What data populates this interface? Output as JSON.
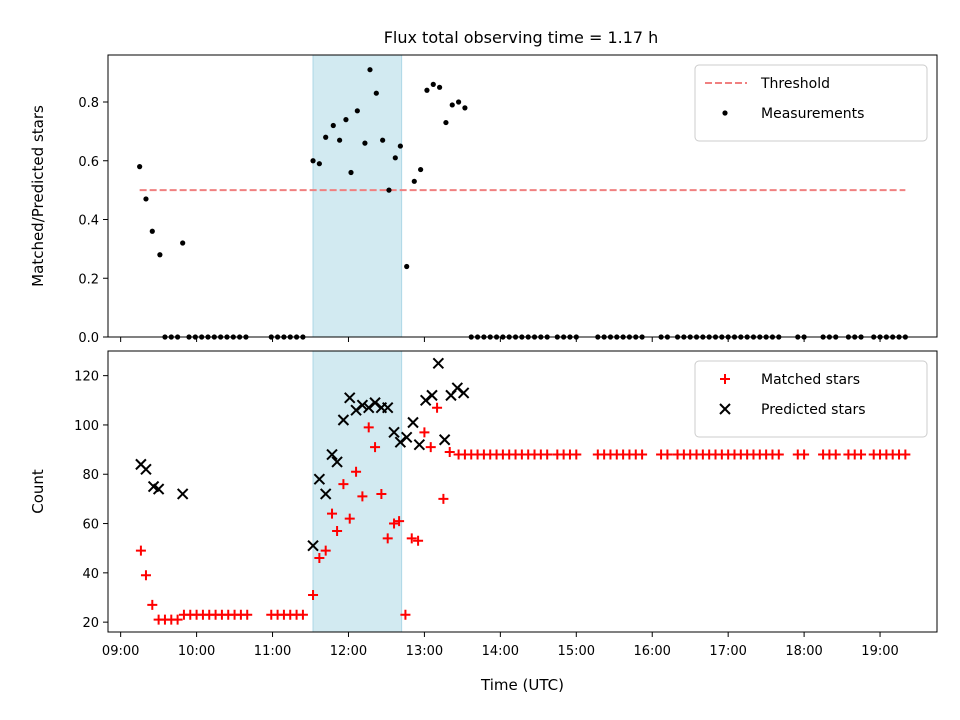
{
  "title": "Flux total observing time = 1.17 h",
  "chart_data": [
    {
      "type": "scatter",
      "ylabel": "Matched/Predicted stars",
      "ylim": [
        0,
        0.96
      ],
      "yticks": [
        0.0,
        0.2,
        0.4,
        0.6,
        0.8
      ],
      "ytick_labels": [
        "0.0",
        "0.2",
        "0.4",
        "0.6",
        "0.8"
      ],
      "xlim": [
        "08:50",
        "19:45"
      ],
      "shaded_span": {
        "start": "11:32",
        "end": "12:42",
        "color": "#add8e6"
      },
      "legend_position": "top-right",
      "threshold": {
        "name": "Threshold",
        "value": 0.5,
        "x_start": "09:15",
        "x_end": "19:20",
        "color": "#f08080"
      },
      "series": [
        {
          "name": "Measurements",
          "color": "#000000",
          "points": [
            [
              "09:15",
              0.58
            ],
            [
              "09:20",
              0.47
            ],
            [
              "09:25",
              0.36
            ],
            [
              "09:31",
              0.28
            ],
            [
              "09:49",
              0.32
            ],
            [
              "09:35",
              0.0
            ],
            [
              "09:40",
              0.0
            ],
            [
              "09:45",
              0.0
            ],
            [
              "09:54",
              0.0
            ],
            [
              "09:59",
              0.0
            ],
            [
              "10:04",
              0.0
            ],
            [
              "10:09",
              0.0
            ],
            [
              "10:14",
              0.0
            ],
            [
              "10:19",
              0.0
            ],
            [
              "10:24",
              0.0
            ],
            [
              "10:29",
              0.0
            ],
            [
              "10:34",
              0.0
            ],
            [
              "10:39",
              0.0
            ],
            [
              "10:59",
              0.0
            ],
            [
              "11:04",
              0.0
            ],
            [
              "11:09",
              0.0
            ],
            [
              "11:14",
              0.0
            ],
            [
              "11:19",
              0.0
            ],
            [
              "11:24",
              0.0
            ],
            [
              "11:32",
              0.6
            ],
            [
              "11:37",
              0.59
            ],
            [
              "11:42",
              0.68
            ],
            [
              "11:48",
              0.72
            ],
            [
              "11:53",
              0.67
            ],
            [
              "11:58",
              0.74
            ],
            [
              "12:02",
              0.56
            ],
            [
              "12:07",
              0.77
            ],
            [
              "12:13",
              0.66
            ],
            [
              "12:17",
              0.91
            ],
            [
              "12:22",
              0.83
            ],
            [
              "12:27",
              0.67
            ],
            [
              "12:32",
              0.5
            ],
            [
              "12:37",
              0.61
            ],
            [
              "12:41",
              0.65
            ],
            [
              "12:46",
              0.24
            ],
            [
              "12:52",
              0.53
            ],
            [
              "12:57",
              0.57
            ],
            [
              "13:02",
              0.84
            ],
            [
              "13:07",
              0.86
            ],
            [
              "13:12",
              0.85
            ],
            [
              "13:17",
              0.73
            ],
            [
              "13:22",
              0.79
            ],
            [
              "13:27",
              0.8
            ],
            [
              "13:32",
              0.78
            ],
            [
              "13:37",
              0.0
            ],
            [
              "13:42",
              0.0
            ],
            [
              "13:47",
              0.0
            ],
            [
              "13:52",
              0.0
            ],
            [
              "13:57",
              0.0
            ],
            [
              "14:02",
              0.0
            ],
            [
              "14:07",
              0.0
            ],
            [
              "14:12",
              0.0
            ],
            [
              "14:17",
              0.0
            ],
            [
              "14:22",
              0.0
            ],
            [
              "14:27",
              0.0
            ],
            [
              "14:32",
              0.0
            ],
            [
              "14:37",
              0.0
            ],
            [
              "14:45",
              0.0
            ],
            [
              "14:50",
              0.0
            ],
            [
              "14:55",
              0.0
            ],
            [
              "15:00",
              0.0
            ],
            [
              "15:17",
              0.0
            ],
            [
              "15:22",
              0.0
            ],
            [
              "15:27",
              0.0
            ],
            [
              "15:32",
              0.0
            ],
            [
              "15:37",
              0.0
            ],
            [
              "15:42",
              0.0
            ],
            [
              "15:47",
              0.0
            ],
            [
              "15:52",
              0.0
            ],
            [
              "16:07",
              0.0
            ],
            [
              "16:12",
              0.0
            ],
            [
              "16:20",
              0.0
            ],
            [
              "16:25",
              0.0
            ],
            [
              "16:30",
              0.0
            ],
            [
              "16:35",
              0.0
            ],
            [
              "16:40",
              0.0
            ],
            [
              "16:45",
              0.0
            ],
            [
              "16:50",
              0.0
            ],
            [
              "16:55",
              0.0
            ],
            [
              "17:00",
              0.0
            ],
            [
              "17:05",
              0.0
            ],
            [
              "17:10",
              0.0
            ],
            [
              "17:15",
              0.0
            ],
            [
              "17:20",
              0.0
            ],
            [
              "17:25",
              0.0
            ],
            [
              "17:30",
              0.0
            ],
            [
              "17:35",
              0.0
            ],
            [
              "17:40",
              0.0
            ],
            [
              "17:55",
              0.0
            ],
            [
              "18:00",
              0.0
            ],
            [
              "18:15",
              0.0
            ],
            [
              "18:20",
              0.0
            ],
            [
              "18:25",
              0.0
            ],
            [
              "18:35",
              0.0
            ],
            [
              "18:40",
              0.0
            ],
            [
              "18:45",
              0.0
            ],
            [
              "18:55",
              0.0
            ],
            [
              "19:00",
              0.0
            ],
            [
              "19:05",
              0.0
            ],
            [
              "19:10",
              0.0
            ],
            [
              "19:15",
              0.0
            ],
            [
              "19:20",
              0.0
            ]
          ]
        }
      ]
    },
    {
      "type": "scatter",
      "ylabel": "Count",
      "xlabel": "Time (UTC)",
      "ylim": [
        16,
        130
      ],
      "yticks": [
        20,
        40,
        60,
        80,
        100,
        120
      ],
      "ytick_labels": [
        "20",
        "40",
        "60",
        "80",
        "100",
        "120"
      ],
      "xlim": [
        "08:50",
        "19:45"
      ],
      "xticks": [
        "09:00",
        "10:00",
        "11:00",
        "12:00",
        "13:00",
        "14:00",
        "15:00",
        "16:00",
        "17:00",
        "18:00",
        "19:00"
      ],
      "xtick_labels": [
        "09:00",
        "10:00",
        "11:00",
        "12:00",
        "13:00",
        "14:00",
        "15:00",
        "16:00",
        "17:00",
        "18:00",
        "19:00"
      ],
      "shaded_span": {
        "start": "11:32",
        "end": "12:42",
        "color": "#add8e6"
      },
      "legend_position": "top-right",
      "series": [
        {
          "name": "Matched stars",
          "marker": "plus",
          "color": "#ff0000",
          "points": [
            [
              "09:16",
              49
            ],
            [
              "09:20",
              39
            ],
            [
              "09:25",
              27
            ],
            [
              "09:30",
              21
            ],
            [
              "09:35",
              21
            ],
            [
              "09:40",
              21
            ],
            [
              "09:45",
              21
            ],
            [
              "09:50",
              23
            ],
            [
              "09:55",
              23
            ],
            [
              "10:00",
              23
            ],
            [
              "10:05",
              23
            ],
            [
              "10:10",
              23
            ],
            [
              "10:15",
              23
            ],
            [
              "10:20",
              23
            ],
            [
              "10:25",
              23
            ],
            [
              "10:30",
              23
            ],
            [
              "10:35",
              23
            ],
            [
              "10:40",
              23
            ],
            [
              "10:59",
              23
            ],
            [
              "11:04",
              23
            ],
            [
              "11:09",
              23
            ],
            [
              "11:14",
              23
            ],
            [
              "11:19",
              23
            ],
            [
              "11:24",
              23
            ],
            [
              "11:32",
              31
            ],
            [
              "11:37",
              46
            ],
            [
              "11:42",
              49
            ],
            [
              "11:47",
              64
            ],
            [
              "11:51",
              57
            ],
            [
              "11:56",
              76
            ],
            [
              "12:01",
              62
            ],
            [
              "12:06",
              81
            ],
            [
              "12:11",
              71
            ],
            [
              "12:16",
              99
            ],
            [
              "12:21",
              91
            ],
            [
              "12:26",
              72
            ],
            [
              "12:31",
              54
            ],
            [
              "12:36",
              60
            ],
            [
              "12:40",
              61
            ],
            [
              "12:45",
              23
            ],
            [
              "12:50",
              54
            ],
            [
              "12:55",
              53
            ],
            [
              "13:00",
              97
            ],
            [
              "13:05",
              91
            ],
            [
              "13:10",
              107
            ],
            [
              "13:15",
              70
            ],
            [
              "13:20",
              89
            ],
            [
              "13:27",
              88
            ],
            [
              "13:32",
              88
            ],
            [
              "13:37",
              88
            ],
            [
              "13:42",
              88
            ],
            [
              "13:47",
              88
            ],
            [
              "13:52",
              88
            ],
            [
              "13:57",
              88
            ],
            [
              "14:02",
              88
            ],
            [
              "14:07",
              88
            ],
            [
              "14:12",
              88
            ],
            [
              "14:17",
              88
            ],
            [
              "14:22",
              88
            ],
            [
              "14:27",
              88
            ],
            [
              "14:32",
              88
            ],
            [
              "14:37",
              88
            ],
            [
              "14:45",
              88
            ],
            [
              "14:50",
              88
            ],
            [
              "14:55",
              88
            ],
            [
              "15:00",
              88
            ],
            [
              "15:17",
              88
            ],
            [
              "15:22",
              88
            ],
            [
              "15:27",
              88
            ],
            [
              "15:32",
              88
            ],
            [
              "15:37",
              88
            ],
            [
              "15:42",
              88
            ],
            [
              "15:47",
              88
            ],
            [
              "15:52",
              88
            ],
            [
              "16:07",
              88
            ],
            [
              "16:12",
              88
            ],
            [
              "16:20",
              88
            ],
            [
              "16:25",
              88
            ],
            [
              "16:30",
              88
            ],
            [
              "16:35",
              88
            ],
            [
              "16:40",
              88
            ],
            [
              "16:45",
              88
            ],
            [
              "16:50",
              88
            ],
            [
              "16:55",
              88
            ],
            [
              "17:00",
              88
            ],
            [
              "17:05",
              88
            ],
            [
              "17:10",
              88
            ],
            [
              "17:15",
              88
            ],
            [
              "17:20",
              88
            ],
            [
              "17:25",
              88
            ],
            [
              "17:30",
              88
            ],
            [
              "17:35",
              88
            ],
            [
              "17:40",
              88
            ],
            [
              "17:55",
              88
            ],
            [
              "18:00",
              88
            ],
            [
              "18:15",
              88
            ],
            [
              "18:20",
              88
            ],
            [
              "18:25",
              88
            ],
            [
              "18:35",
              88
            ],
            [
              "18:40",
              88
            ],
            [
              "18:45",
              88
            ],
            [
              "18:55",
              88
            ],
            [
              "19:00",
              88
            ],
            [
              "19:05",
              88
            ],
            [
              "19:10",
              88
            ],
            [
              "19:15",
              88
            ],
            [
              "19:20",
              88
            ]
          ]
        },
        {
          "name": "Predicted stars",
          "marker": "x",
          "color": "#000000",
          "points": [
            [
              "09:16",
              84
            ],
            [
              "09:20",
              82
            ],
            [
              "09:26",
              75
            ],
            [
              "09:30",
              74
            ],
            [
              "09:49",
              72
            ],
            [
              "11:32",
              51
            ],
            [
              "11:37",
              78
            ],
            [
              "11:42",
              72
            ],
            [
              "11:47",
              88
            ],
            [
              "11:51",
              85
            ],
            [
              "11:56",
              102
            ],
            [
              "12:01",
              111
            ],
            [
              "12:06",
              106
            ],
            [
              "12:11",
              108
            ],
            [
              "12:16",
              107
            ],
            [
              "12:21",
              109
            ],
            [
              "12:26",
              107
            ],
            [
              "12:31",
              107
            ],
            [
              "12:36",
              97
            ],
            [
              "12:41",
              93
            ],
            [
              "12:46",
              95
            ],
            [
              "12:51",
              101
            ],
            [
              "12:56",
              92
            ],
            [
              "13:01",
              110
            ],
            [
              "13:06",
              112
            ],
            [
              "13:11",
              125
            ],
            [
              "13:16",
              94
            ],
            [
              "13:21",
              112
            ],
            [
              "13:26",
              115
            ],
            [
              "13:31",
              113
            ]
          ]
        }
      ]
    }
  ]
}
